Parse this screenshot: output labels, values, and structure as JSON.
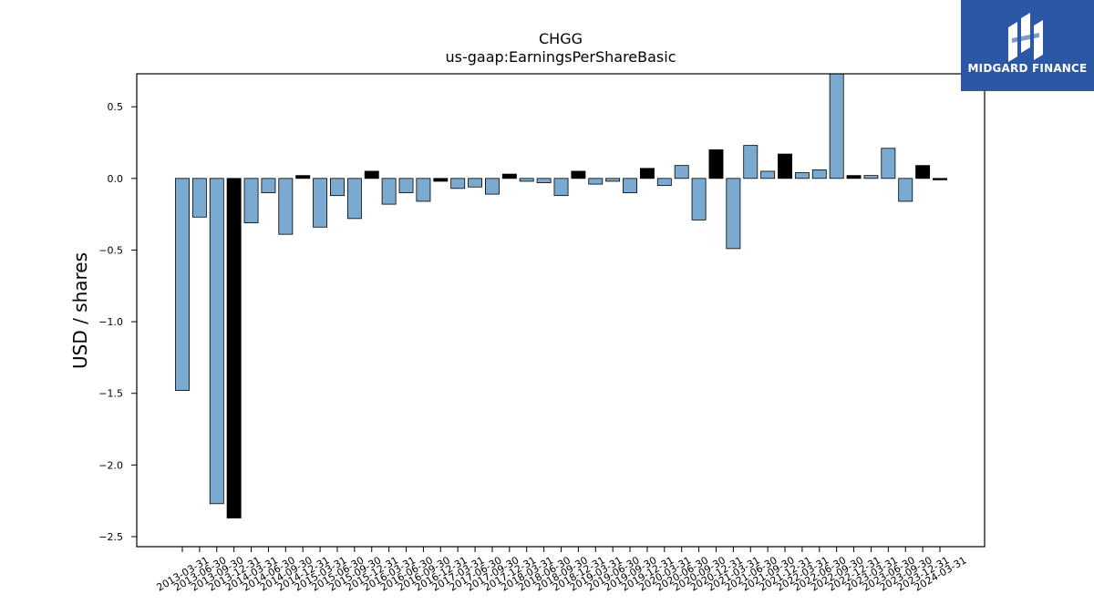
{
  "chart_data": {
    "type": "bar",
    "title": "CHGG",
    "subtitle": "us-gaap:EarningsPerShareBasic",
    "xlabel": "",
    "ylabel": "USD / shares",
    "ylim": [
      -2.57,
      0.73
    ],
    "yticks": [
      0.5,
      0.0,
      -0.5,
      -1.0,
      -1.5,
      -2.0,
      -2.5
    ],
    "ytick_labels": [
      "0.5",
      "0.0",
      "−0.5",
      "−1.0",
      "−1.5",
      "−2.0",
      "−2.5"
    ],
    "grid": false,
    "colors": {
      "quarter": "#7aaad0",
      "annual": "#000000",
      "edge": "#000000"
    },
    "categories": [
      "2013-03-31",
      "2013-06-30",
      "2013-09-30",
      "2013-12-31",
      "2014-03-31",
      "2014-06-30",
      "2014-09-30",
      "2014-12-31",
      "2015-03-31",
      "2015-06-30",
      "2015-09-30",
      "2015-12-31",
      "2016-03-31",
      "2016-06-30",
      "2016-09-30",
      "2016-12-31",
      "2017-03-31",
      "2017-06-30",
      "2017-09-30",
      "2017-12-31",
      "2018-03-31",
      "2018-06-30",
      "2018-09-30",
      "2018-12-31",
      "2019-03-31",
      "2019-06-30",
      "2019-09-30",
      "2019-12-31",
      "2020-03-31",
      "2020-06-30",
      "2020-09-30",
      "2020-12-31",
      "2021-03-31",
      "2021-06-30",
      "2021-09-30",
      "2021-12-31",
      "2022-03-31",
      "2022-06-30",
      "2022-09-30",
      "2022-12-31",
      "2023-03-31",
      "2023-06-30",
      "2023-09-30",
      "2023-12-31",
      "2024-03-31"
    ],
    "values": [
      -1.48,
      -0.27,
      -2.27,
      -2.37,
      -0.31,
      -0.1,
      -0.39,
      0.02,
      -0.34,
      -0.12,
      -0.28,
      0.05,
      -0.18,
      -0.1,
      -0.16,
      -0.02,
      -0.07,
      -0.06,
      -0.11,
      0.03,
      -0.02,
      -0.03,
      -0.12,
      0.05,
      -0.04,
      -0.02,
      -0.1,
      0.07,
      -0.05,
      0.09,
      -0.29,
      0.2,
      -0.49,
      0.23,
      0.05,
      0.17,
      0.04,
      0.06,
      0.73,
      0.02,
      0.02,
      0.21,
      -0.16,
      0.09,
      -0.01
    ],
    "annual_flags": [
      0,
      0,
      0,
      1,
      0,
      0,
      0,
      1,
      0,
      0,
      0,
      1,
      0,
      0,
      0,
      1,
      0,
      0,
      0,
      1,
      0,
      0,
      0,
      1,
      0,
      0,
      0,
      1,
      0,
      0,
      0,
      1,
      0,
      0,
      0,
      1,
      0,
      0,
      0,
      1,
      0,
      0,
      0,
      1,
      1
    ]
  },
  "logo": {
    "text": "MIDGARD FINANCE",
    "icon": "midgard-logo-icon",
    "background": "#2b57a5"
  }
}
